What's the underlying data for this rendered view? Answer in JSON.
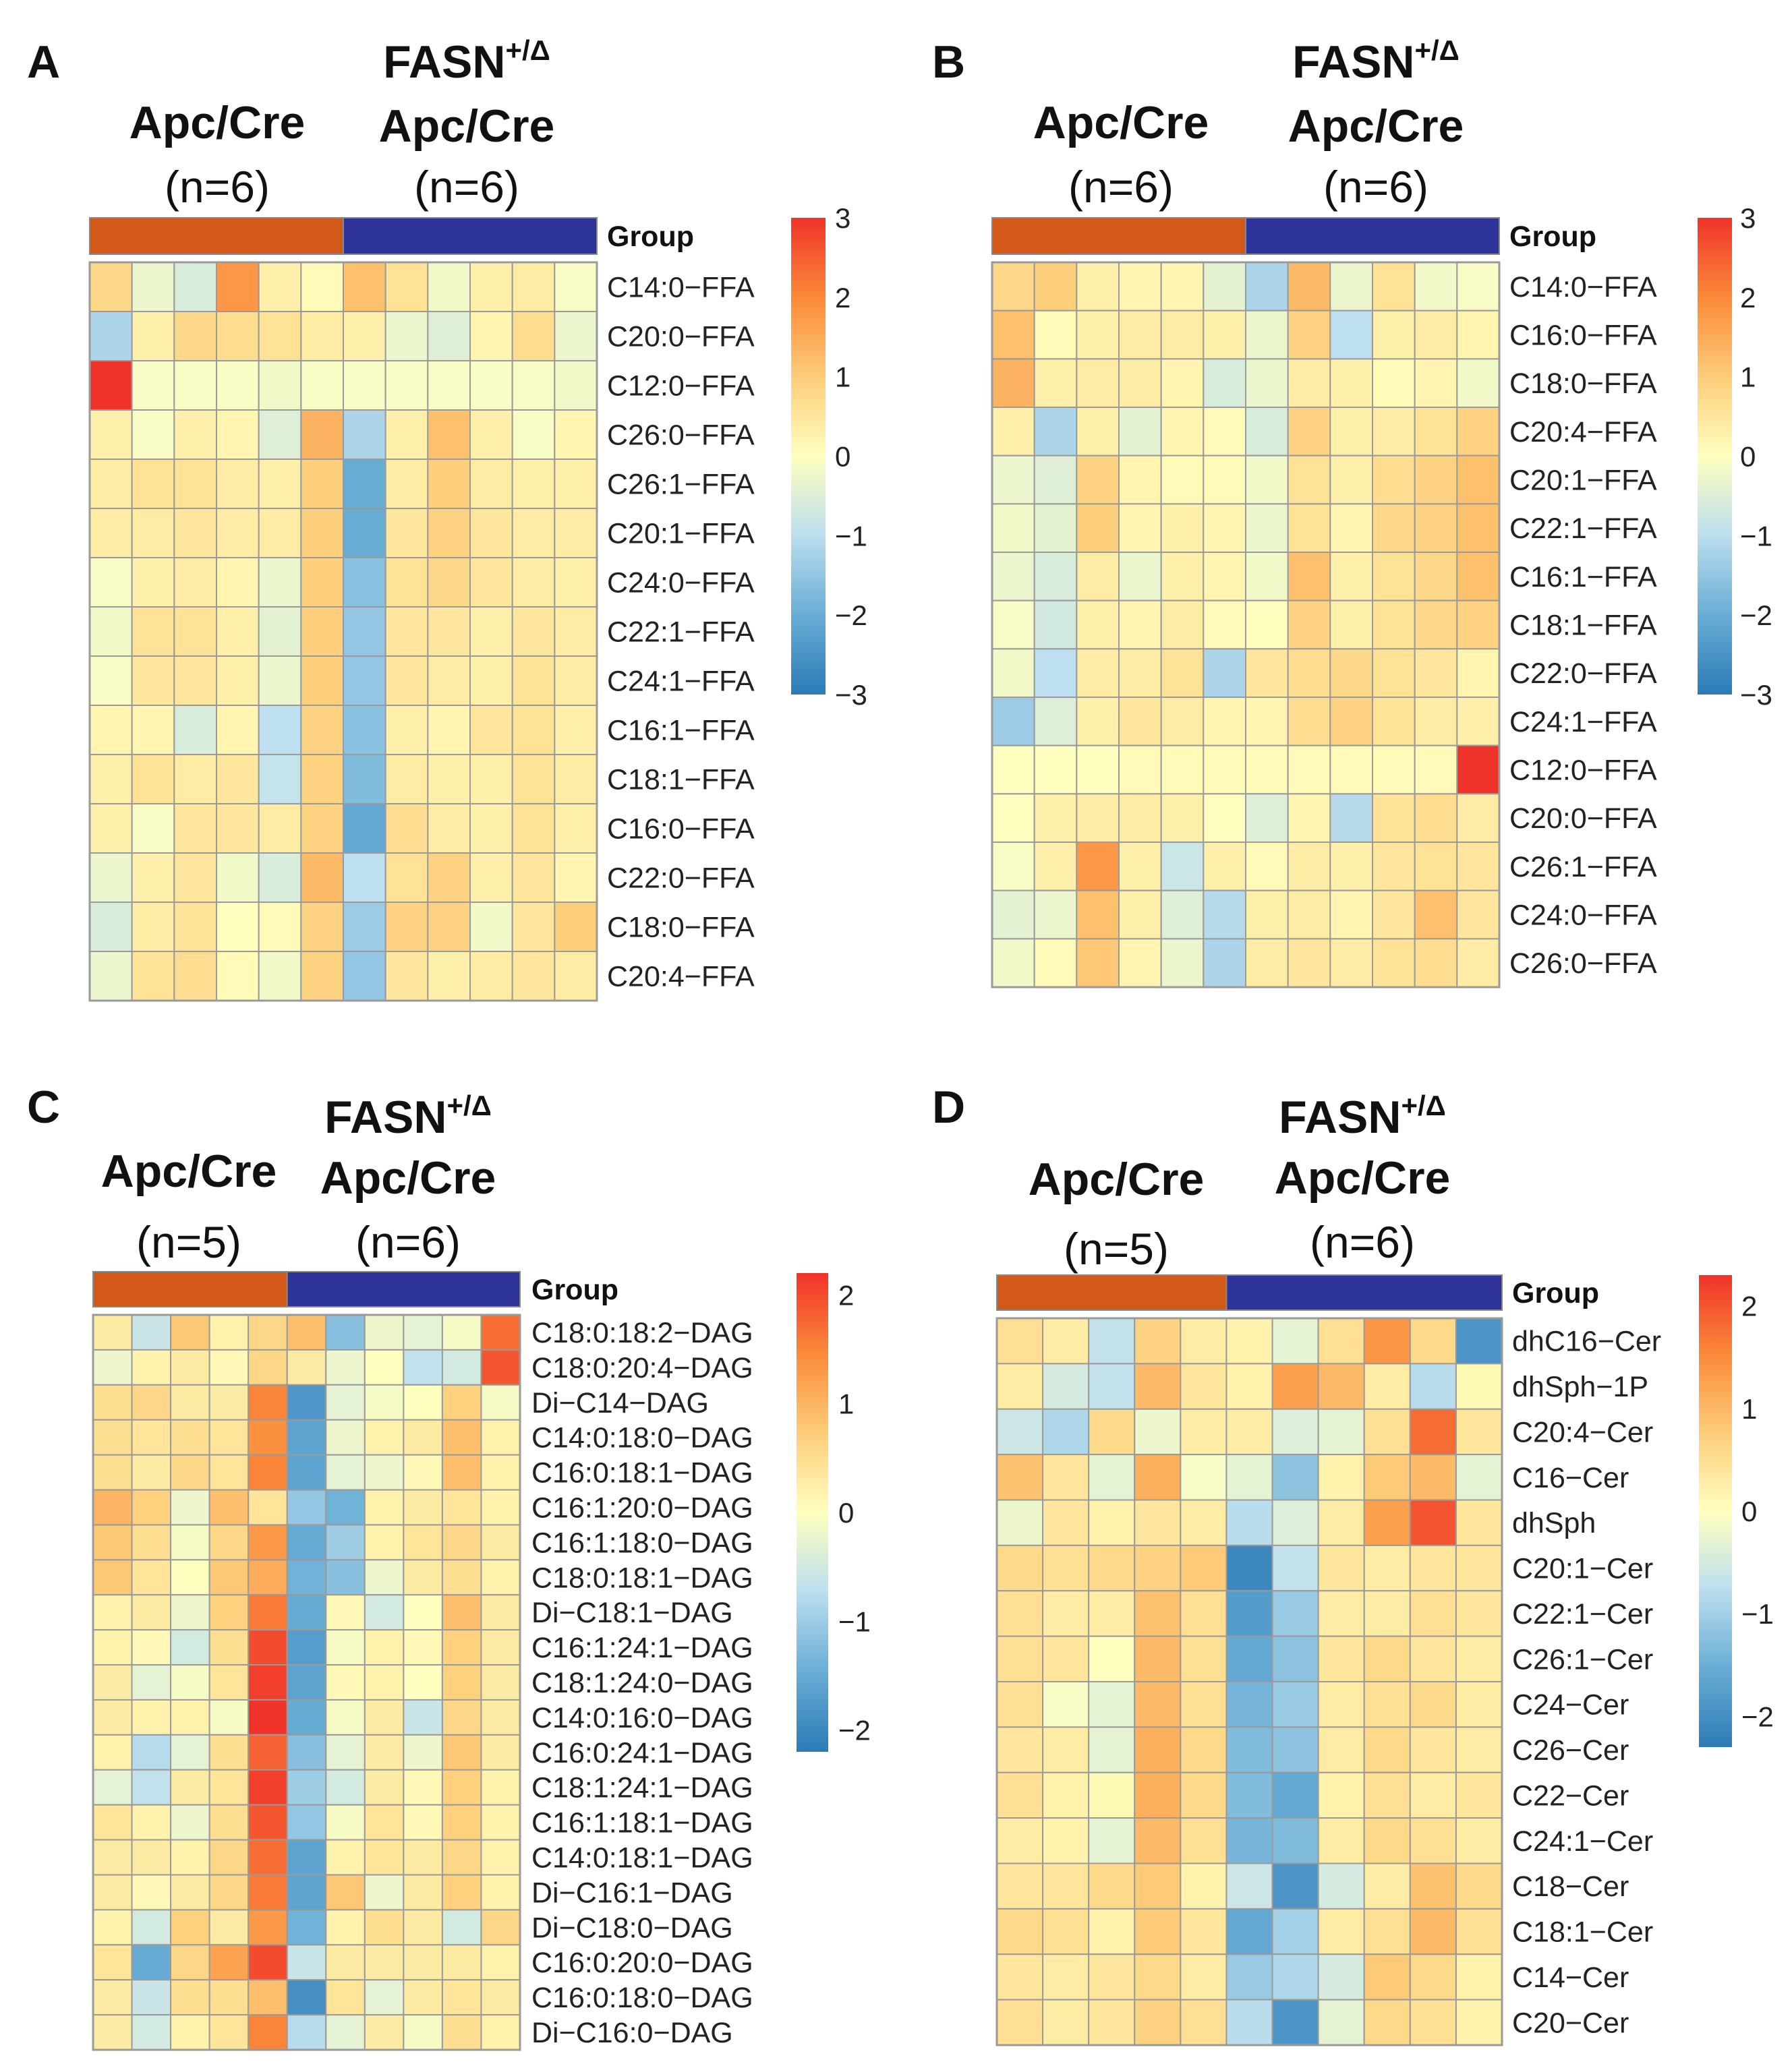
{
  "colors": {
    "low": "#2c7bb6",
    "mid": "#ffffbf",
    "high": "#f0332a",
    "group_a": "#d2591a",
    "group_b": "#2d3399"
  },
  "legend_title": "Group",
  "chart_data": [
    {
      "type": "heatmap",
      "panel": "A",
      "group1_title": "Apc/Cre",
      "group1_n": "(n=6)",
      "group2_title_main": "FASN",
      "group2_title_sup": "+/Δ",
      "group2_title_line2": "Apc/Cre",
      "group2_n": "(n=6)",
      "group_split": 6,
      "n_cols": 12,
      "scale_range": [
        -3,
        3
      ],
      "scale_ticks": [
        "3",
        "2",
        "1",
        "0",
        "−1",
        "−2",
        "−3"
      ],
      "rows": [
        "C14:0−FFA",
        "C20:0−FFA",
        "C12:0−FFA",
        "C26:0−FFA",
        "C26:1−FFA",
        "C20:1−FFA",
        "C24:0−FFA",
        "C22:1−FFA",
        "C24:1−FFA",
        "C16:1−FFA",
        "C18:1−FFA",
        "C16:0−FFA",
        "C22:0−FFA",
        "C18:0−FFA",
        "C20:4−FFA"
      ],
      "values": [
        [
          0.8,
          -0.3,
          -0.6,
          1.8,
          0.3,
          0.1,
          1.2,
          0.6,
          -0.2,
          0.3,
          0.4,
          -0.1
        ],
        [
          -1.2,
          0.3,
          0.8,
          0.7,
          0.6,
          0.4,
          0.3,
          -0.3,
          -0.5,
          0.2,
          0.7,
          -0.3
        ],
        [
          3.0,
          -0.1,
          -0.1,
          -0.1,
          -0.2,
          -0.1,
          -0.1,
          -0.1,
          -0.1,
          -0.1,
          -0.1,
          -0.2
        ],
        [
          0.3,
          -0.1,
          0.3,
          0.2,
          -0.5,
          1.4,
          -1.2,
          0.3,
          1.2,
          0.3,
          -0.1,
          0.2
        ],
        [
          0.4,
          0.6,
          0.6,
          0.4,
          0.3,
          1.0,
          -2.0,
          0.4,
          1.0,
          0.4,
          0.3,
          0.3
        ],
        [
          0.4,
          0.4,
          0.5,
          0.4,
          0.4,
          1.0,
          -2.0,
          0.5,
          0.9,
          0.5,
          0.4,
          0.4
        ],
        [
          -0.1,
          0.3,
          0.4,
          0.2,
          -0.3,
          1.0,
          -1.6,
          0.6,
          0.8,
          0.5,
          0.4,
          0.3
        ],
        [
          -0.2,
          0.6,
          0.6,
          0.3,
          -0.4,
          1.0,
          -1.5,
          0.5,
          0.5,
          0.3,
          0.5,
          0.4
        ],
        [
          -0.1,
          0.5,
          0.5,
          0.3,
          -0.3,
          1.0,
          -1.5,
          0.5,
          0.4,
          0.3,
          0.6,
          0.4
        ],
        [
          0.2,
          0.2,
          -0.6,
          0.2,
          -1.0,
          0.9,
          -1.6,
          0.3,
          0.2,
          0.5,
          0.6,
          0.3
        ],
        [
          0.3,
          0.6,
          0.4,
          0.5,
          -0.9,
          0.9,
          -1.7,
          0.4,
          0.3,
          0.3,
          0.6,
          0.4
        ],
        [
          0.3,
          -0.1,
          0.5,
          0.5,
          0.4,
          0.9,
          -2.1,
          0.7,
          0.4,
          0.3,
          0.6,
          0.3
        ],
        [
          -0.3,
          0.3,
          0.5,
          -0.2,
          -0.6,
          1.3,
          -1.0,
          0.6,
          0.9,
          0.3,
          0.5,
          0.2
        ],
        [
          -0.6,
          0.4,
          0.6,
          0.0,
          0.1,
          0.9,
          -1.4,
          0.9,
          0.9,
          -0.2,
          0.5,
          1.0
        ],
        [
          -0.3,
          0.6,
          0.7,
          0.1,
          -0.2,
          0.9,
          -1.5,
          0.5,
          0.3,
          0.4,
          0.5,
          0.4
        ]
      ]
    },
    {
      "type": "heatmap",
      "panel": "B",
      "group1_title": "Apc/Cre",
      "group1_n": "(n=6)",
      "group2_title_main": "FASN",
      "group2_title_sup": "+/Δ",
      "group2_title_line2": "Apc/Cre",
      "group2_n": "(n=6)",
      "group_split": 6,
      "n_cols": 12,
      "scale_range": [
        -3,
        3
      ],
      "scale_ticks": [
        "3",
        "2",
        "1",
        "0",
        "−1",
        "−2",
        "−3"
      ],
      "rows": [
        "C14:0−FFA",
        "C16:0−FFA",
        "C18:0−FFA",
        "C20:4−FFA",
        "C20:1−FFA",
        "C22:1−FFA",
        "C16:1−FFA",
        "C18:1−FFA",
        "C22:0−FFA",
        "C24:1−FFA",
        "C12:0−FFA",
        "C20:0−FFA",
        "C26:1−FFA",
        "C24:0−FFA",
        "C26:0−FFA"
      ],
      "values": [
        [
          0.8,
          1.0,
          0.3,
          0.2,
          0.2,
          -0.4,
          -1.2,
          1.3,
          -0.3,
          0.6,
          -0.2,
          -0.1
        ],
        [
          1.2,
          0.1,
          0.3,
          0.4,
          0.4,
          0.3,
          -0.3,
          0.9,
          -1.0,
          0.3,
          0.4,
          0.2
        ],
        [
          1.4,
          0.3,
          0.4,
          0.4,
          0.2,
          -0.6,
          -0.3,
          0.4,
          0.3,
          0.1,
          0.2,
          -0.2
        ],
        [
          0.3,
          -1.2,
          0.3,
          -0.4,
          0.2,
          0.1,
          -0.6,
          0.9,
          0.3,
          0.4,
          0.6,
          0.9
        ],
        [
          -0.3,
          -0.5,
          0.9,
          0.2,
          0.1,
          0.1,
          -0.2,
          0.6,
          0.3,
          0.7,
          0.9,
          1.2
        ],
        [
          -0.2,
          -0.4,
          1.0,
          0.2,
          0.3,
          0.2,
          -0.3,
          0.6,
          0.2,
          0.8,
          0.9,
          1.2
        ],
        [
          -0.3,
          -0.6,
          0.4,
          -0.3,
          0.3,
          0.2,
          -0.2,
          1.2,
          0.3,
          0.6,
          0.8,
          1.2
        ],
        [
          -0.1,
          -0.7,
          0.3,
          0.2,
          0.4,
          0.1,
          0.0,
          0.9,
          0.3,
          0.6,
          0.8,
          0.9
        ],
        [
          -0.2,
          -1.0,
          0.4,
          0.4,
          0.6,
          -1.2,
          0.5,
          0.7,
          0.8,
          0.6,
          0.5,
          0.2
        ],
        [
          -1.4,
          -0.5,
          0.3,
          0.5,
          0.4,
          0.2,
          0.2,
          0.7,
          0.9,
          0.6,
          0.4,
          0.3
        ],
        [
          0.0,
          0.0,
          0.0,
          0.1,
          0.1,
          0.1,
          0.1,
          0.1,
          0.1,
          0.1,
          0.1,
          3.0
        ],
        [
          0.0,
          0.3,
          0.4,
          0.4,
          0.3,
          0.0,
          -0.5,
          0.2,
          -1.1,
          0.6,
          0.7,
          0.4
        ],
        [
          -0.1,
          0.3,
          1.8,
          0.3,
          -0.8,
          0.3,
          0.1,
          0.4,
          0.3,
          0.5,
          0.6,
          0.5
        ],
        [
          -0.4,
          -0.3,
          1.2,
          0.3,
          -0.5,
          -1.1,
          0.3,
          0.4,
          0.2,
          0.5,
          1.2,
          0.5
        ],
        [
          -0.2,
          0.1,
          1.1,
          0.2,
          -0.3,
          -1.2,
          0.4,
          0.5,
          0.4,
          0.6,
          0.7,
          0.4
        ]
      ]
    },
    {
      "type": "heatmap",
      "panel": "C",
      "group1_title": "Apc/Cre",
      "group1_n": "(n=5)",
      "group2_title_main": "FASN",
      "group2_title_sup": "+/Δ",
      "group2_title_line2": "Apc/Cre",
      "group2_n": "(n=6)",
      "group_split": 5,
      "n_cols": 11,
      "scale_range": [
        -2.2,
        2.2
      ],
      "scale_ticks": [
        "2",
        "1",
        "0",
        "−1",
        "−2"
      ],
      "rows": [
        "C18:0:18:2−DAG",
        "C18:0:20:4−DAG",
        "Di−C14−DAG",
        "C14:0:18:0−DAG",
        "C16:0:18:1−DAG",
        "C16:1:20:0−DAG",
        "C16:1:18:0−DAG",
        "C18:0:18:1−DAG",
        "Di−C18:1−DAG",
        "C16:1:24:1−DAG",
        "C18:1:24:0−DAG",
        "C14:0:16:0−DAG",
        "C16:0:24:1−DAG",
        "C18:1:24:1−DAG",
        "C16:1:18:1−DAG",
        "C14:0:18:1−DAG",
        "Di−C16:1−DAG",
        "Di−C18:0−DAG",
        "C16:0:20:0−DAG",
        "C16:0:18:0−DAG",
        "Di−C16:0−DAG"
      ],
      "values": [
        [
          0.3,
          -0.6,
          0.8,
          0.2,
          0.6,
          0.9,
          -1.2,
          -0.2,
          -0.3,
          -0.1,
          1.7
        ],
        [
          -0.2,
          0.2,
          0.3,
          0.1,
          0.6,
          0.3,
          -0.2,
          0.0,
          -0.7,
          -0.5,
          1.9
        ],
        [
          0.5,
          0.6,
          0.3,
          0.3,
          1.5,
          -1.8,
          -0.3,
          -0.1,
          0.0,
          0.7,
          -0.1
        ],
        [
          0.5,
          0.4,
          0.5,
          0.4,
          1.4,
          -1.6,
          -0.2,
          0.2,
          0.3,
          0.9,
          0.2
        ],
        [
          0.5,
          0.3,
          0.6,
          0.4,
          1.5,
          -1.6,
          -0.3,
          -0.2,
          0.1,
          0.9,
          0.2
        ],
        [
          1.0,
          0.7,
          -0.2,
          0.9,
          0.4,
          -1.1,
          -1.4,
          0.2,
          0.3,
          0.4,
          0.2
        ],
        [
          0.8,
          0.5,
          -0.1,
          0.6,
          1.3,
          -1.5,
          -1.0,
          0.2,
          0.4,
          0.6,
          0.3
        ],
        [
          0.8,
          0.4,
          0.0,
          0.8,
          1.1,
          -1.4,
          -1.2,
          -0.2,
          0.3,
          0.5,
          0.2
        ],
        [
          0.2,
          0.3,
          -0.2,
          0.7,
          1.6,
          -1.5,
          0.1,
          -0.5,
          0.0,
          0.9,
          0.3
        ],
        [
          0.2,
          0.1,
          -0.5,
          0.5,
          2.0,
          -1.7,
          -0.1,
          0.2,
          0.1,
          0.7,
          0.3
        ],
        [
          0.3,
          -0.3,
          -0.1,
          0.4,
          2.1,
          -1.6,
          0.1,
          0.2,
          0.0,
          0.7,
          0.3
        ],
        [
          0.3,
          0.2,
          0.2,
          -0.1,
          2.2,
          -1.5,
          -0.1,
          0.3,
          -0.6,
          0.6,
          0.3
        ],
        [
          0.2,
          -0.8,
          -0.3,
          0.5,
          1.8,
          -1.2,
          -0.3,
          0.3,
          -0.2,
          0.8,
          0.3
        ],
        [
          -0.3,
          -0.7,
          0.3,
          0.4,
          2.1,
          -1.0,
          -0.5,
          0.3,
          0.1,
          0.7,
          0.2
        ],
        [
          0.4,
          0.2,
          -0.2,
          0.5,
          1.9,
          -1.1,
          -0.1,
          0.4,
          0.1,
          0.7,
          0.2
        ],
        [
          0.3,
          0.3,
          0.2,
          0.6,
          1.7,
          -1.6,
          0.2,
          0.4,
          0.3,
          0.6,
          0.2
        ],
        [
          0.3,
          0.1,
          0.3,
          0.6,
          1.6,
          -1.6,
          0.8,
          -0.2,
          0.3,
          0.7,
          0.2
        ],
        [
          0.2,
          -0.5,
          0.7,
          0.3,
          1.3,
          -1.4,
          0.2,
          0.5,
          0.3,
          -0.5,
          0.6
        ],
        [
          0.4,
          -1.5,
          0.6,
          1.2,
          2.0,
          -0.6,
          0.3,
          0.3,
          0.3,
          0.3,
          0.2
        ],
        [
          0.3,
          -0.6,
          0.5,
          0.5,
          0.9,
          -1.9,
          0.4,
          -0.3,
          0.3,
          0.4,
          0.3
        ],
        [
          0.3,
          -0.5,
          0.2,
          0.4,
          1.5,
          -0.8,
          -0.3,
          0.3,
          -0.1,
          0.5,
          0.2
        ]
      ]
    },
    {
      "type": "heatmap",
      "panel": "D",
      "group1_title": "Apc/Cre",
      "group1_n": "(n=5)",
      "group2_title_main": "FASN",
      "group2_title_sup": "+/Δ",
      "group2_title_line2": "Apc/Cre",
      "group2_n": "(n=6)",
      "group_split": 5,
      "n_cols": 11,
      "scale_range": [
        -2.3,
        2.3
      ],
      "scale_ticks": [
        "2",
        "1",
        "0",
        "−1",
        "−2"
      ],
      "rows": [
        "dhC16−Cer",
        "dhSph−1P",
        "C20:4−Cer",
        "C16−Cer",
        "dhSph",
        "C20:1−Cer",
        "C22:1−Cer",
        "C26:1−Cer",
        "C24−Cer",
        "C26−Cer",
        "C22−Cer",
        "C24:1−Cer",
        "C18−Cer",
        "C18:1−Cer",
        "C14−Cer",
        "C20−Cer"
      ],
      "values": [
        [
          0.5,
          0.3,
          -0.7,
          0.7,
          0.3,
          0.2,
          -0.3,
          0.5,
          1.4,
          0.6,
          -1.9
        ],
        [
          0.3,
          -0.5,
          -0.7,
          1.0,
          0.4,
          0.2,
          1.3,
          1.0,
          0.3,
          -0.8,
          0.1
        ],
        [
          -0.6,
          -0.9,
          0.6,
          -0.2,
          0.3,
          0.3,
          -0.4,
          -0.3,
          0.5,
          1.8,
          0.4
        ],
        [
          0.9,
          0.4,
          -0.3,
          1.1,
          -0.1,
          -0.3,
          -1.2,
          0.2,
          0.8,
          1.0,
          -0.3
        ],
        [
          -0.2,
          0.4,
          0.2,
          0.4,
          0.3,
          -0.8,
          -0.4,
          0.3,
          1.3,
          2.0,
          0.4
        ],
        [
          0.6,
          0.5,
          0.6,
          0.7,
          0.8,
          -2.1,
          -0.7,
          0.4,
          0.3,
          0.4,
          0.4
        ],
        [
          0.5,
          0.3,
          0.3,
          0.9,
          0.5,
          -1.8,
          -1.1,
          0.3,
          0.3,
          0.5,
          0.4
        ],
        [
          0.5,
          0.4,
          0.0,
          1.0,
          0.5,
          -1.6,
          -1.2,
          0.4,
          0.6,
          0.4,
          0.3
        ],
        [
          0.5,
          -0.1,
          -0.3,
          1.0,
          0.5,
          -1.4,
          -1.1,
          0.3,
          0.5,
          0.6,
          0.3
        ],
        [
          0.4,
          0.3,
          -0.3,
          1.1,
          0.6,
          -1.3,
          -1.2,
          0.3,
          0.6,
          0.4,
          0.3
        ],
        [
          0.5,
          0.2,
          0.1,
          1.1,
          0.6,
          -1.3,
          -1.6,
          0.2,
          0.5,
          0.3,
          0.4
        ],
        [
          0.3,
          0.2,
          -0.3,
          1.0,
          0.5,
          -1.4,
          -1.3,
          0.3,
          0.6,
          0.5,
          0.3
        ],
        [
          0.4,
          0.4,
          0.6,
          0.8,
          0.2,
          -0.6,
          -1.9,
          -0.5,
          0.3,
          0.9,
          0.6
        ],
        [
          0.6,
          0.5,
          0.2,
          0.8,
          0.4,
          -1.6,
          -1.0,
          0.3,
          0.5,
          1.0,
          0.5
        ],
        [
          0.4,
          0.3,
          0.4,
          0.6,
          0.3,
          -1.1,
          -0.9,
          -0.5,
          0.8,
          0.6,
          0.2
        ],
        [
          0.5,
          0.3,
          0.4,
          0.7,
          0.5,
          -0.8,
          -1.9,
          -0.3,
          0.6,
          0.5,
          0.2
        ]
      ]
    }
  ]
}
